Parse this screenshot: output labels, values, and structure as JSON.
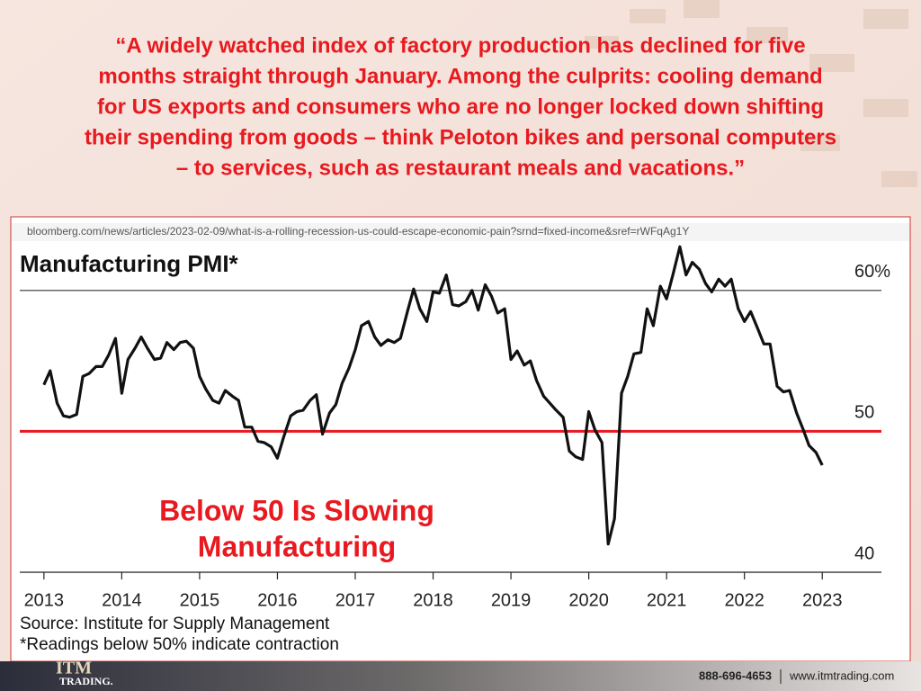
{
  "quote": [
    "“A widely watched index of factory production has declined for five",
    "months straight through January. Among the culprits: cooling demand",
    "for US exports and consumers who are no longer locked down shifting",
    "their spending from goods – think Peloton bikes and personal computers",
    "– to services, such as restaurant meals and vacations.”"
  ],
  "url": "bloomberg.com/news/articles/2023-02-09/what-is-a-rolling-recession-us-could-escape-economic-pain?srnd=fixed-income&sref=rWFqAg1Y",
  "footer": {
    "logo": "ITM",
    "logo_sub": "TRADING.",
    "phone": "888-696-4653",
    "website": "www.itmtrading.com"
  },
  "chart_data": {
    "type": "line",
    "title": "Manufacturing PMI*",
    "annotation": [
      "Below 50 Is Slowing",
      "Manufacturing"
    ],
    "source": "Source: Institute for Supply Management",
    "note": "*Readings below 50% indicate contraction",
    "x": [
      2013,
      2013.08,
      2013.17,
      2013.25,
      2013.33,
      2013.42,
      2013.5,
      2013.58,
      2013.67,
      2013.75,
      2013.83,
      2013.92,
      2014,
      2014.08,
      2014.17,
      2014.25,
      2014.33,
      2014.42,
      2014.5,
      2014.58,
      2014.67,
      2014.75,
      2014.83,
      2014.92,
      2015,
      2015.08,
      2015.17,
      2015.25,
      2015.33,
      2015.42,
      2015.5,
      2015.58,
      2015.67,
      2015.75,
      2015.83,
      2015.92,
      2016,
      2016.08,
      2016.17,
      2016.25,
      2016.33,
      2016.42,
      2016.5,
      2016.58,
      2016.67,
      2016.75,
      2016.83,
      2016.92,
      2017,
      2017.08,
      2017.17,
      2017.25,
      2017.33,
      2017.42,
      2017.5,
      2017.58,
      2017.67,
      2017.75,
      2017.83,
      2017.92,
      2018,
      2018.08,
      2018.17,
      2018.25,
      2018.33,
      2018.42,
      2018.5,
      2018.58,
      2018.67,
      2018.75,
      2018.83,
      2018.92,
      2019,
      2019.08,
      2019.17,
      2019.25,
      2019.33,
      2019.42,
      2019.5,
      2019.58,
      2019.67,
      2019.75,
      2019.83,
      2019.92,
      2020,
      2020.08,
      2020.17,
      2020.25,
      2020.33,
      2020.42,
      2020.5,
      2020.58,
      2020.67,
      2020.75,
      2020.83,
      2020.92,
      2021,
      2021.08,
      2021.17,
      2021.25,
      2021.33,
      2021.42,
      2021.5,
      2021.58,
      2021.67,
      2021.75,
      2021.83,
      2021.92,
      2022,
      2022.08,
      2022.17,
      2022.25,
      2022.33,
      2022.42,
      2022.5,
      2022.58,
      2022.67,
      2022.75,
      2022.83,
      2022.92,
      2023
    ],
    "series": [
      {
        "name": "Manufacturing PMI",
        "color": "#111111",
        "values": [
          53.3,
          54.3,
          52.0,
          51.1,
          51.0,
          51.2,
          53.9,
          54.1,
          54.6,
          54.6,
          55.4,
          56.6,
          52.7,
          55.1,
          55.9,
          56.7,
          55.9,
          55.1,
          55.2,
          56.3,
          55.8,
          56.3,
          56.4,
          55.9,
          53.9,
          53.0,
          52.2,
          52.0,
          52.9,
          52.5,
          52.2,
          50.3,
          50.3,
          49.3,
          49.2,
          48.9,
          48.1,
          49.6,
          51.1,
          51.4,
          51.5,
          52.2,
          52.6,
          49.8,
          51.3,
          51.9,
          53.4,
          54.5,
          55.8,
          57.5,
          57.8,
          56.7,
          56.1,
          56.5,
          56.3,
          56.6,
          58.5,
          60.1,
          58.7,
          57.8,
          59.9,
          59.8,
          61.1,
          59.0,
          58.9,
          59.2,
          60.0,
          58.6,
          60.4,
          59.6,
          58.4,
          58.7,
          55.1,
          55.7,
          54.7,
          55.0,
          53.6,
          52.5,
          52.0,
          51.5,
          51.0,
          48.6,
          48.2,
          48.0,
          51.4,
          50.1,
          49.2,
          42.0,
          43.8,
          52.7,
          53.9,
          55.5,
          55.6,
          58.7,
          57.5,
          60.3,
          59.4,
          61.1,
          63.1,
          61.1,
          62.0,
          61.5,
          60.5,
          59.9,
          60.8,
          60.3,
          60.8,
          58.7,
          57.8,
          58.5,
          57.3,
          56.2,
          56.2,
          53.2,
          52.8,
          52.9,
          51.3,
          50.2,
          49.0,
          48.5,
          47.6
        ]
      }
    ],
    "xlim": [
      2012.69,
      2023.76
    ],
    "xticks": [
      2013,
      2014,
      2015,
      2016,
      2017,
      2018,
      2019,
      2020,
      2021,
      2022,
      2023
    ],
    "ylim": [
      40,
      63.5
    ],
    "yticks": [
      40,
      50,
      {
        "value": 60,
        "label": "60%"
      }
    ],
    "grid": true,
    "grid_colors": [
      "#222222",
      "#e8191f",
      "#333333"
    ]
  }
}
